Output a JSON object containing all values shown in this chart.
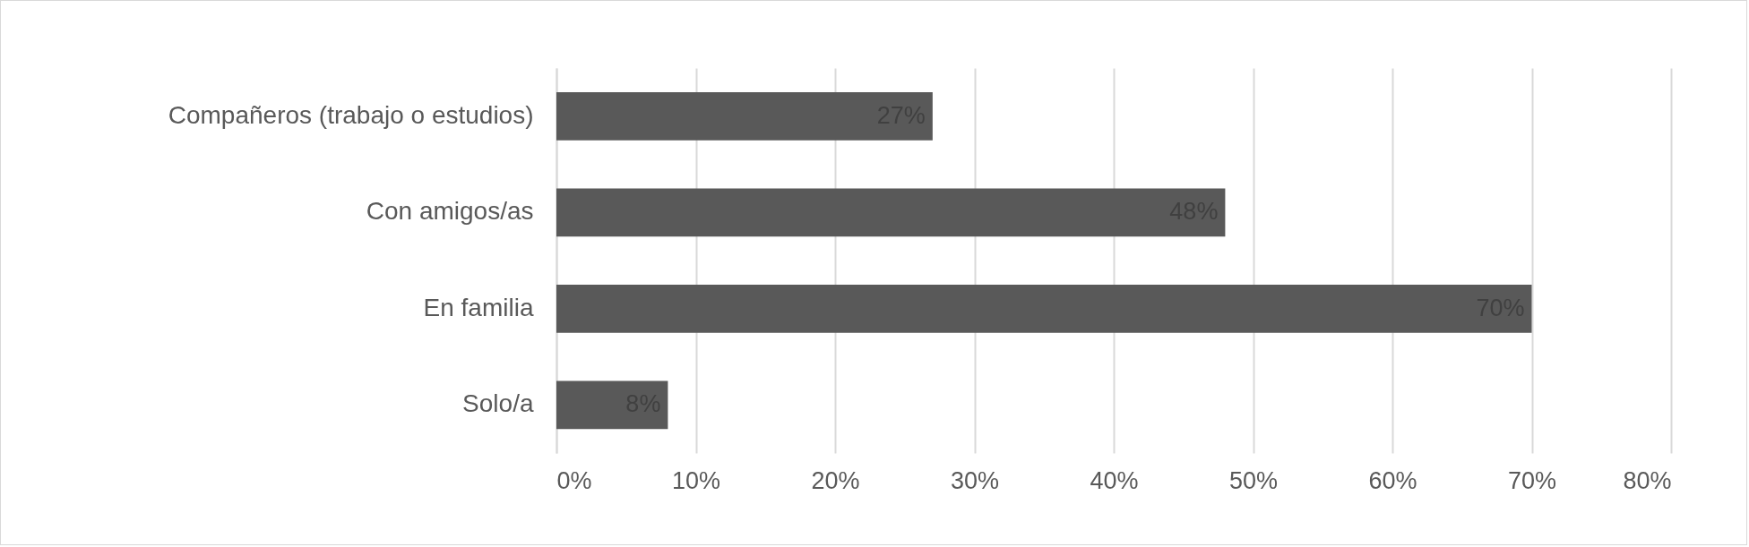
{
  "chart_data": {
    "type": "bar",
    "orientation": "horizontal",
    "categories": [
      "Compañeros (trabajo o estudios)",
      "Con amigos/as",
      "En familia",
      "Solo/a"
    ],
    "values": [
      27,
      48,
      70,
      8
    ],
    "value_labels": [
      "27%",
      "48%",
      "70%",
      "8%"
    ],
    "color": "#595959",
    "xlim": [
      0,
      80
    ],
    "xticks": [
      {
        "value": 0,
        "label": "0%"
      },
      {
        "value": 10,
        "label": "10%"
      },
      {
        "value": 20,
        "label": "20%"
      },
      {
        "value": 30,
        "label": "30%"
      },
      {
        "value": 40,
        "label": "40%"
      },
      {
        "value": 50,
        "label": "50%"
      },
      {
        "value": 60,
        "label": "60%"
      },
      {
        "value": 70,
        "label": "70%"
      },
      {
        "value": 80,
        "label": "80%"
      }
    ],
    "grid": "x"
  }
}
